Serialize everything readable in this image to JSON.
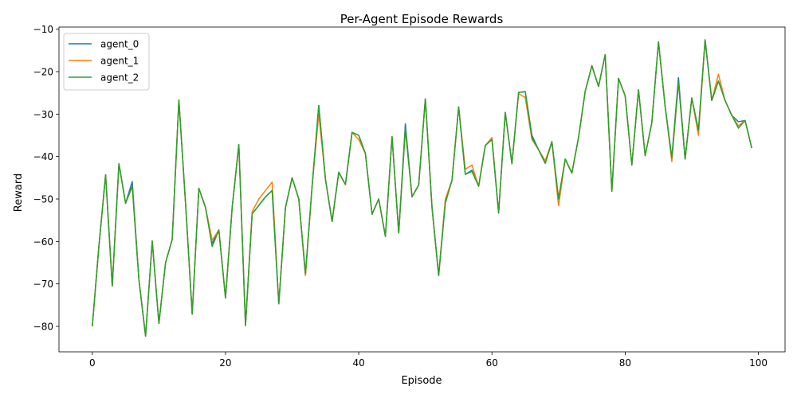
{
  "chart_data": {
    "type": "line",
    "title": "Per-Agent Episode Rewards",
    "xlabel": "Episode",
    "ylabel": "Reward",
    "xlim": [
      -5,
      104
    ],
    "ylim": [
      -86,
      -9.5
    ],
    "xticks": [
      0,
      20,
      40,
      60,
      80,
      100
    ],
    "yticks": [
      -80,
      -70,
      -60,
      -50,
      -40,
      -30,
      -20,
      -10
    ],
    "legend": "upper-left",
    "grid": false,
    "series": [
      {
        "name": "agent_0",
        "color": "#1f77b4",
        "values": [
          -80.0,
          -61.0,
          -44.3,
          -70.5,
          -41.7,
          -51.0,
          -45.9,
          -69.0,
          -82.3,
          -59.9,
          -79.3,
          -65.0,
          -59.5,
          -26.7,
          -51.0,
          -77.1,
          -47.5,
          -52.0,
          -60.5,
          -57.3,
          -73.3,
          -52.0,
          -37.2,
          -79.8,
          -53.5,
          -51.5,
          -49.5,
          -48.0,
          -74.7,
          -52.0,
          -45.0,
          -50.0,
          -68.0,
          -47.0,
          -28.0,
          -45.3,
          -55.3,
          -43.7,
          -46.6,
          -34.3,
          -35.0,
          -39.3,
          -53.6,
          -50.0,
          -58.8,
          -35.3,
          -58.0,
          -32.3,
          -49.5,
          -46.7,
          -26.4,
          -52.0,
          -68.0,
          -50.6,
          -45.6,
          -28.3,
          -44.2,
          -43.2,
          -47.0,
          -37.4,
          -35.8,
          -53.3,
          -29.6,
          -41.7,
          -24.9,
          -24.7,
          -35.0,
          -38.4,
          -41.6,
          -36.5,
          -50.0,
          -40.6,
          -43.9,
          -35.5,
          -24.6,
          -18.6,
          -23.5,
          -16.0,
          -48.2,
          -21.6,
          -25.7,
          -42.0,
          -24.3,
          -39.8,
          -32.0,
          -13.0,
          -28.2,
          -40.3,
          -21.4,
          -40.6,
          -26.2,
          -33.8,
          -12.5,
          -26.8,
          -22.2,
          -26.8,
          -30.3,
          -31.8,
          -31.5,
          -38.0
        ]
      },
      {
        "name": "agent_1",
        "color": "#ff7f0e",
        "values": [
          -80.0,
          -61.0,
          -44.3,
          -70.5,
          -41.7,
          -51.0,
          -47.0,
          -69.0,
          -82.3,
          -59.9,
          -79.3,
          -65.0,
          -59.5,
          -26.7,
          -51.0,
          -77.1,
          -47.5,
          -52.0,
          -59.7,
          -57.3,
          -73.3,
          -52.0,
          -37.2,
          -79.8,
          -53.0,
          -50.0,
          -48.0,
          -46.0,
          -74.7,
          -52.0,
          -45.0,
          -50.0,
          -68.0,
          -47.0,
          -30.0,
          -45.3,
          -55.3,
          -43.7,
          -46.6,
          -34.3,
          -36.0,
          -39.3,
          -53.6,
          -50.0,
          -58.8,
          -35.3,
          -58.0,
          -33.5,
          -49.5,
          -46.7,
          -26.4,
          -52.0,
          -68.0,
          -50.0,
          -45.6,
          -28.3,
          -43.0,
          -42.0,
          -47.0,
          -37.4,
          -35.5,
          -53.3,
          -29.6,
          -41.7,
          -25.2,
          -26.1,
          -36.0,
          -38.4,
          -41.0,
          -36.5,
          -51.6,
          -40.6,
          -43.9,
          -35.5,
          -24.6,
          -18.6,
          -23.5,
          -16.0,
          -48.2,
          -21.6,
          -25.7,
          -42.0,
          -24.3,
          -39.8,
          -32.0,
          -13.0,
          -28.2,
          -41.2,
          -22.5,
          -40.6,
          -26.2,
          -35.0,
          -12.5,
          -26.8,
          -20.6,
          -26.8,
          -30.3,
          -32.8,
          -31.5,
          -38.0
        ]
      },
      {
        "name": "agent_2",
        "color": "#2ca02c",
        "values": [
          -80.0,
          -61.0,
          -44.3,
          -70.5,
          -41.7,
          -51.0,
          -47.0,
          -69.0,
          -82.3,
          -59.9,
          -79.3,
          -65.0,
          -59.5,
          -26.7,
          -51.0,
          -77.1,
          -47.5,
          -52.0,
          -61.2,
          -57.3,
          -73.3,
          -52.0,
          -37.2,
          -79.8,
          -53.5,
          -51.5,
          -49.5,
          -48.0,
          -74.7,
          -52.0,
          -45.0,
          -50.0,
          -67.5,
          -47.0,
          -28.0,
          -45.3,
          -55.3,
          -43.7,
          -46.6,
          -34.3,
          -35.0,
          -39.3,
          -53.6,
          -50.0,
          -58.8,
          -35.3,
          -58.0,
          -33.5,
          -49.5,
          -46.7,
          -26.4,
          -52.0,
          -68.0,
          -51.0,
          -45.6,
          -28.3,
          -44.2,
          -43.5,
          -47.0,
          -37.4,
          -36.0,
          -53.3,
          -29.6,
          -41.7,
          -24.9,
          -24.7,
          -35.5,
          -38.4,
          -41.6,
          -36.5,
          -50.0,
          -40.6,
          -43.9,
          -35.5,
          -24.6,
          -18.6,
          -23.5,
          -16.0,
          -48.2,
          -21.6,
          -25.7,
          -42.0,
          -24.3,
          -39.8,
          -32.0,
          -13.0,
          -28.2,
          -40.3,
          -22.5,
          -40.6,
          -26.2,
          -33.8,
          -12.5,
          -26.8,
          -22.2,
          -26.8,
          -30.3,
          -33.3,
          -31.5,
          -38.0
        ]
      }
    ]
  }
}
